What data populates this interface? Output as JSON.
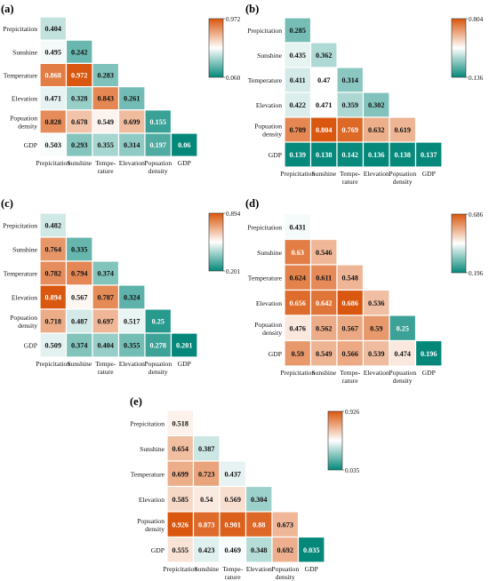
{
  "figure": {
    "row_labels": [
      [
        "Prepicitation"
      ],
      [
        "Sunshine"
      ],
      [
        "Temperature"
      ],
      [
        "Elevation"
      ],
      [
        "Popuation",
        "density"
      ],
      [
        "GDP"
      ]
    ],
    "col_labels": [
      [
        "Prepicitation"
      ],
      [
        "Sunshine"
      ],
      [
        "Tempe-",
        "rature"
      ],
      [
        "Elevation"
      ],
      [
        "Popuation",
        "density"
      ],
      [
        "GDP"
      ]
    ],
    "colors": {
      "low": "#05887a",
      "mid": "#ffffff",
      "high": "#d9570e"
    }
  },
  "chart_data": [
    {
      "type": "heatmap",
      "panel_label": "(a)",
      "colorbar": {
        "min": "0.060",
        "max": "0.972",
        "min_value": 0.06,
        "max_value": 0.972
      },
      "matrix": [
        [
          0.404
        ],
        [
          0.495,
          0.242
        ],
        [
          0.868,
          0.972,
          0.283
        ],
        [
          0.471,
          0.328,
          0.843,
          0.261
        ],
        [
          0.828,
          0.678,
          0.549,
          0.699,
          0.155
        ],
        [
          0.503,
          0.293,
          0.355,
          0.314,
          0.197,
          0.06
        ]
      ],
      "labels": [
        [
          "0.404"
        ],
        [
          "0.495",
          "0.242"
        ],
        [
          "0.868",
          "0.972",
          "0.283"
        ],
        [
          "0.471",
          "0.328",
          "0.843",
          "0.261"
        ],
        [
          "0.828",
          "0.678",
          "0.549",
          "0.699",
          "0.155"
        ],
        [
          "0.503",
          "0.293",
          "0.355",
          "0.314",
          "0.197",
          "0.06"
        ]
      ]
    },
    {
      "type": "heatmap",
      "panel_label": "(b)",
      "colorbar": {
        "min": "0.136",
        "max": "0.804",
        "min_value": 0.136,
        "max_value": 0.804
      },
      "matrix": [
        [
          0.285
        ],
        [
          0.435,
          0.362
        ],
        [
          0.411,
          0.47,
          0.314
        ],
        [
          0.422,
          0.471,
          0.359,
          0.302
        ],
        [
          0.709,
          0.804,
          0.769,
          0.632,
          0.619
        ],
        [
          0.139,
          0.138,
          0.142,
          0.136,
          0.138,
          0.137
        ]
      ],
      "labels": [
        [
          "0.285"
        ],
        [
          "0.435",
          "0.362"
        ],
        [
          "0.411",
          "0.47",
          "0.314"
        ],
        [
          "0.422",
          "0.471",
          "0.359",
          "0.302"
        ],
        [
          "0.709",
          "0.804",
          "0.769",
          "0.632",
          "0.619"
        ],
        [
          "0.139",
          "0.138",
          "0.142",
          "0.136",
          "0.138",
          "0.137"
        ]
      ]
    },
    {
      "type": "heatmap",
      "panel_label": "(c)",
      "colorbar": {
        "min": "0.201",
        "max": "0.894",
        "min_value": 0.201,
        "max_value": 0.894
      },
      "matrix": [
        [
          0.482
        ],
        [
          0.764,
          0.335
        ],
        [
          0.782,
          0.794,
          0.374
        ],
        [
          0.894,
          0.567,
          0.787,
          0.324
        ],
        [
          0.718,
          0.487,
          0.697,
          0.517,
          0.25
        ],
        [
          0.509,
          0.374,
          0.404,
          0.355,
          0.278,
          0.201
        ]
      ],
      "labels": [
        [
          "0.482"
        ],
        [
          "0.764",
          "0.335"
        ],
        [
          "0.782",
          "0.794",
          "0.374"
        ],
        [
          "0.894",
          "0.567",
          "0.787",
          "0.324"
        ],
        [
          "0.718",
          "0.487",
          "0.697",
          "0.517",
          "0.25"
        ],
        [
          "0.509",
          "0.374",
          "0.404",
          "0.355",
          "0.278",
          "0.201"
        ]
      ]
    },
    {
      "type": "heatmap",
      "panel_label": "(d)",
      "colorbar": {
        "min": "0.196",
        "max": "0.686",
        "min_value": 0.196,
        "max_value": 0.686
      },
      "matrix": [
        [
          0.431
        ],
        [
          0.63,
          0.546
        ],
        [
          0.624,
          0.611,
          0.548
        ],
        [
          0.656,
          0.642,
          0.686,
          0.536
        ],
        [
          0.476,
          0.562,
          0.567,
          0.59,
          0.25
        ],
        [
          0.59,
          0.549,
          0.566,
          0.539,
          0.474,
          0.196
        ]
      ],
      "labels": [
        [
          "0.431"
        ],
        [
          "0.63",
          "0.546"
        ],
        [
          "0.624",
          "0.611",
          "0.548"
        ],
        [
          "0.656",
          "0.642",
          "0.686",
          "0.536"
        ],
        [
          "0.476",
          "0.562",
          "0.567",
          "0.59",
          "0.25"
        ],
        [
          "0.59",
          "0.549",
          "0.566",
          "0.539",
          "0.474",
          "0.196"
        ]
      ]
    },
    {
      "type": "heatmap",
      "panel_label": "(e)",
      "colorbar": {
        "min": "0.035",
        "max": "0.926",
        "min_value": 0.035,
        "max_value": 0.926
      },
      "matrix": [
        [
          0.518
        ],
        [
          0.654,
          0.387
        ],
        [
          0.699,
          0.723,
          0.437
        ],
        [
          0.585,
          0.54,
          0.569,
          0.304
        ],
        [
          0.926,
          0.873,
          0.901,
          0.88,
          0.673
        ],
        [
          0.555,
          0.423,
          0.469,
          0.348,
          0.692,
          0.035
        ]
      ],
      "labels": [
        [
          "0.518"
        ],
        [
          "0.654",
          "0.387"
        ],
        [
          "0.699",
          "0.723",
          "0.437"
        ],
        [
          "0.585",
          "0.54",
          "0.569",
          "0.304"
        ],
        [
          "0.926",
          "0.873",
          "0.901",
          "0.88",
          "0.673"
        ],
        [
          "0.555",
          "0.423",
          "0.469",
          "0.348",
          "0.692",
          "0.035"
        ]
      ]
    }
  ]
}
